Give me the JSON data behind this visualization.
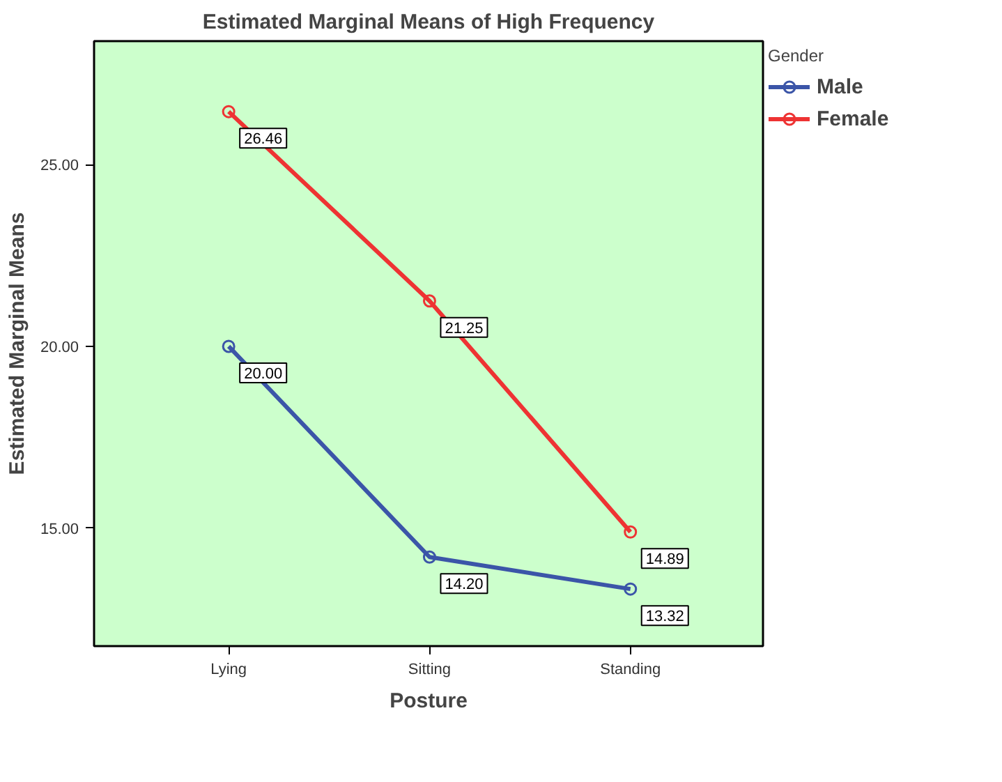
{
  "chart_data": {
    "type": "line",
    "title": "Estimated Marginal Means of High Frequency",
    "xlabel": "Posture",
    "ylabel": "Estimated Marginal Means",
    "legend_title": "Gender",
    "categories": [
      "Lying",
      "Sitting",
      "Standing"
    ],
    "series": [
      {
        "name": "Male",
        "color": "#3b55a8",
        "values": [
          20.0,
          14.2,
          13.32
        ],
        "value_labels": [
          "20.00",
          "14.20",
          "13.32"
        ]
      },
      {
        "name": "Female",
        "color": "#ee3333",
        "values": [
          26.46,
          21.25,
          14.89
        ],
        "value_labels": [
          "26.46",
          "21.25",
          "14.89"
        ]
      }
    ],
    "ylim": [
      11.75,
      28.4
    ],
    "yticks": [
      {
        "value": 15,
        "label": "15.00"
      },
      {
        "value": 20,
        "label": "20.00"
      },
      {
        "value": 25,
        "label": "25.00"
      }
    ],
    "legend": "right",
    "grid": false,
    "marker": "circle",
    "line_style": "solid"
  }
}
